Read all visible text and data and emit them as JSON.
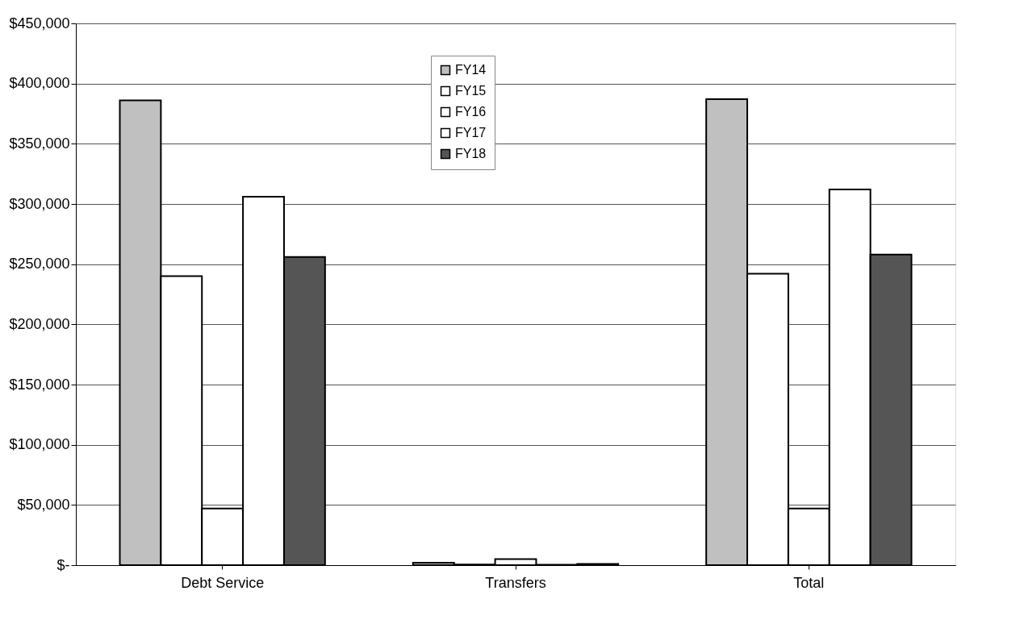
{
  "chart_data": {
    "type": "bar",
    "categories": [
      "Debt Service",
      "Transfers",
      "Total"
    ],
    "series": [
      {
        "name": "FY14",
        "color": "#c0c0c0",
        "values": [
          386000,
          2000,
          387000
        ]
      },
      {
        "name": "FY15",
        "color": "#ffffff",
        "values": [
          240000,
          500,
          242000
        ]
      },
      {
        "name": "FY16",
        "color": "#ffffff",
        "values": [
          47000,
          5000,
          47000
        ]
      },
      {
        "name": "FY17",
        "color": "#ffffff",
        "values": [
          306000,
          300,
          312000
        ]
      },
      {
        "name": "FY18",
        "color": "#555555",
        "values": [
          256000,
          1000,
          258000
        ]
      }
    ],
    "ylim": [
      0,
      450000
    ],
    "yticks": [
      {
        "value": 0,
        "label": "$-"
      },
      {
        "value": 50000,
        "label": "$50,000"
      },
      {
        "value": 100000,
        "label": "$100,000"
      },
      {
        "value": 150000,
        "label": "$150,000"
      },
      {
        "value": 200000,
        "label": "$200,000"
      },
      {
        "value": 250000,
        "label": "$250,000"
      },
      {
        "value": 300000,
        "label": "$300,000"
      },
      {
        "value": 350000,
        "label": "$350,000"
      },
      {
        "value": 400000,
        "label": "$400,000"
      },
      {
        "value": 450000,
        "label": "$450,000"
      }
    ],
    "grid": "y",
    "legend": "top"
  }
}
